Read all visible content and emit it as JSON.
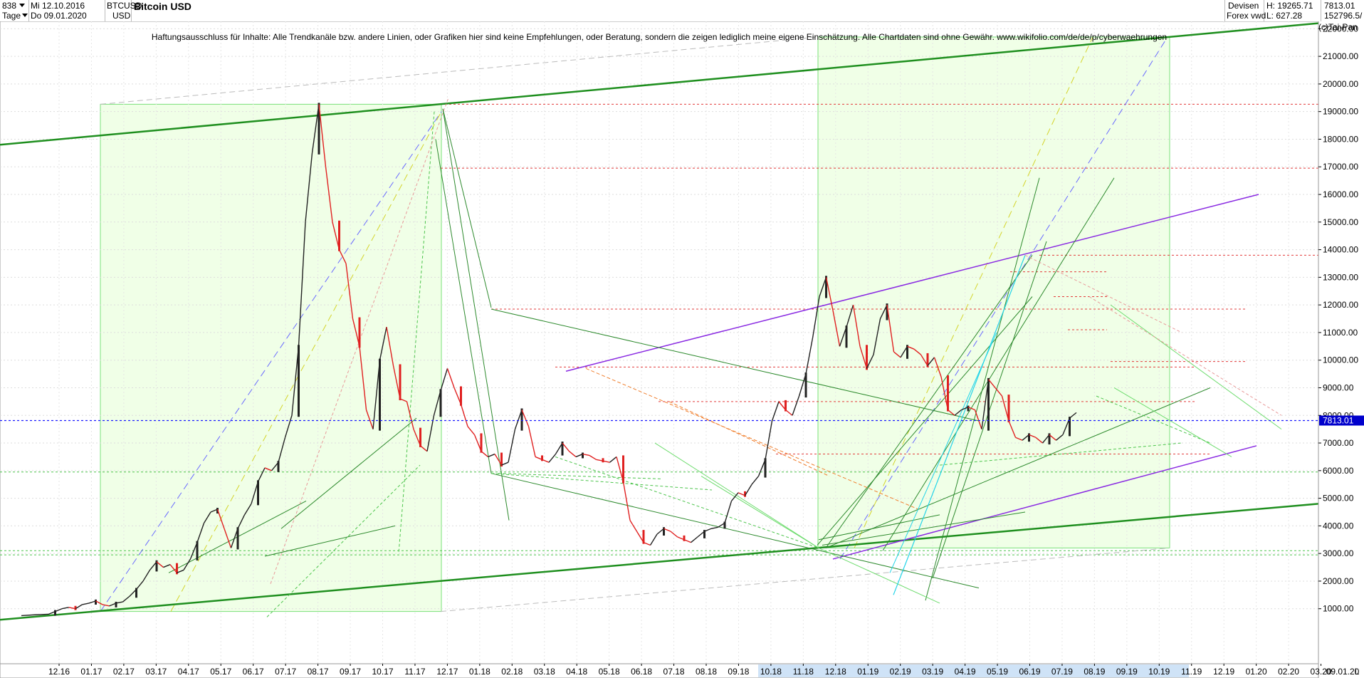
{
  "header": {
    "id_value": "838",
    "date_from": "Mi 12.10.2016",
    "period": "Tage",
    "date_to": "Do 09.01.2020",
    "symbol": "BTCUSD",
    "currency": "USD",
    "title": "Bitcoin USD",
    "market": "Devisen",
    "source": "Forex vwd",
    "high": "H: 19265.71",
    "low": "L: 627.28",
    "last": "7813.01",
    "volume": "152796.5/"
  },
  "disclaimer": "Haftungsausschluss für Inhalte: Alle Trendkanäle bzw. andere Linien, oder Grafiken hier sind keine Empfehlungen, oder Beratung, sondern die zeigen lediglich meine eigene Einschätzung. Alle Chartdaten sind ohne Gewähr.  www.wikifolio.com/de/de/p/cyberwaehrungen",
  "copyright": "(c)Tai-Pan",
  "corner_label": "L",
  "chart_data": {
    "type": "line",
    "title": "Bitcoin USD",
    "y_ticks": [
      1000,
      2000,
      3000,
      4000,
      5000,
      6000,
      7000,
      8000,
      9000,
      10000,
      11000,
      12000,
      13000,
      14000,
      15000,
      16000,
      17000,
      18000,
      19000,
      20000,
      21000,
      22000
    ],
    "y_tick_labels": [
      "1000.00",
      "2000.00",
      "3000.00",
      "4000.00",
      "5000.00",
      "6000.00",
      "7000.00",
      "8000.00",
      "9000.00",
      "10000.00",
      "11000.00",
      "12000.00",
      "13000.00",
      "14000.00",
      "15000.00",
      "16000.00",
      "17000.00",
      "18000.00",
      "19000.00",
      "20000.00",
      "21000.00",
      "22000.00"
    ],
    "ylim": [
      0,
      23000
    ],
    "x_labels": [
      "12.16",
      "01.17",
      "02.17",
      "03.17",
      "04.17",
      "05.17",
      "06.17",
      "07.17",
      "08.17",
      "09.17",
      "10.17",
      "11.17",
      "12.17",
      "01.18",
      "02.18",
      "03.18",
      "04.18",
      "05.18",
      "06.18",
      "07.18",
      "08.18",
      "09.18",
      "10.18",
      "11.18",
      "12.18",
      "01.19",
      "02.19",
      "03.19",
      "04.19",
      "05.19",
      "06.19",
      "07.19",
      "08.19",
      "09.19",
      "10.19",
      "11.19",
      "12.19",
      "01.20",
      "02.20",
      "03.20"
    ],
    "x_end_label": "09.01.20",
    "last_value_label": "7813.01",
    "last_value": 7813.01,
    "series": [
      {
        "points": [
          [
            0,
            750
          ],
          [
            2,
            780
          ],
          [
            4,
            800
          ],
          [
            5,
            900
          ],
          [
            6,
            1000
          ],
          [
            7,
            1050
          ],
          [
            8,
            1000
          ],
          [
            9,
            1150
          ],
          [
            10,
            1200
          ],
          [
            11,
            1280
          ],
          [
            12,
            1150
          ],
          [
            13,
            1100
          ],
          [
            14,
            1200
          ],
          [
            15,
            1250
          ],
          [
            16,
            1450
          ],
          [
            17,
            1700
          ],
          [
            18,
            2000
          ],
          [
            19,
            2400
          ],
          [
            20,
            2700
          ],
          [
            21,
            2500
          ],
          [
            22,
            2600
          ],
          [
            23,
            2300
          ],
          [
            24,
            2400
          ],
          [
            25,
            2800
          ],
          [
            26,
            3400
          ],
          [
            27,
            4100
          ],
          [
            28,
            4500
          ],
          [
            29,
            4600
          ],
          [
            30,
            3900
          ],
          [
            31,
            3200
          ],
          [
            32,
            3900
          ],
          [
            33,
            4400
          ],
          [
            34,
            4800
          ],
          [
            35,
            5600
          ],
          [
            36,
            6100
          ],
          [
            37,
            6000
          ],
          [
            38,
            6300
          ],
          [
            39,
            7200
          ],
          [
            40,
            8000
          ],
          [
            41,
            10500
          ],
          [
            42,
            15000
          ],
          [
            43,
            17500
          ],
          [
            44,
            19265
          ],
          [
            45,
            17000
          ],
          [
            46,
            15000
          ],
          [
            47,
            14000
          ],
          [
            48,
            13500
          ],
          [
            49,
            11500
          ],
          [
            50,
            10500
          ],
          [
            51,
            8200
          ],
          [
            52,
            7500
          ],
          [
            53,
            10000
          ],
          [
            54,
            11200
          ],
          [
            55,
            9800
          ],
          [
            56,
            8600
          ],
          [
            57,
            8500
          ],
          [
            58,
            7500
          ],
          [
            59,
            6900
          ],
          [
            60,
            6700
          ],
          [
            61,
            8000
          ],
          [
            62,
            8900
          ],
          [
            63,
            9700
          ],
          [
            64,
            9000
          ],
          [
            65,
            8400
          ],
          [
            66,
            7600
          ],
          [
            67,
            7300
          ],
          [
            68,
            6700
          ],
          [
            69,
            6500
          ],
          [
            70,
            6600
          ],
          [
            71,
            6200
          ],
          [
            72,
            6300
          ],
          [
            73,
            7500
          ],
          [
            74,
            8200
          ],
          [
            75,
            7600
          ],
          [
            76,
            6500
          ],
          [
            77,
            6400
          ],
          [
            78,
            6300
          ],
          [
            79,
            6600
          ],
          [
            80,
            7000
          ],
          [
            81,
            6700
          ],
          [
            82,
            6500
          ],
          [
            83,
            6600
          ],
          [
            84,
            6550
          ],
          [
            85,
            6400
          ],
          [
            86,
            6350
          ],
          [
            87,
            6300
          ],
          [
            88,
            6500
          ],
          [
            89,
            5600
          ],
          [
            90,
            4200
          ],
          [
            91,
            3800
          ],
          [
            92,
            3400
          ],
          [
            93,
            3300
          ],
          [
            94,
            3700
          ],
          [
            95,
            3900
          ],
          [
            96,
            3800
          ],
          [
            97,
            3600
          ],
          [
            98,
            3500
          ],
          [
            99,
            3400
          ],
          [
            100,
            3600
          ],
          [
            101,
            3800
          ],
          [
            102,
            3900
          ],
          [
            103,
            3950
          ],
          [
            104,
            4100
          ],
          [
            105,
            4900
          ],
          [
            106,
            5200
          ],
          [
            107,
            5100
          ],
          [
            108,
            5500
          ],
          [
            109,
            5800
          ],
          [
            110,
            6400
          ],
          [
            111,
            7800
          ],
          [
            112,
            8500
          ],
          [
            113,
            8200
          ],
          [
            114,
            8000
          ],
          [
            115,
            8700
          ],
          [
            116,
            9500
          ],
          [
            117,
            10800
          ],
          [
            118,
            12300
          ],
          [
            119,
            13000
          ],
          [
            120,
            11800
          ],
          [
            121,
            10500
          ],
          [
            122,
            11200
          ],
          [
            123,
            12000
          ],
          [
            124,
            10500
          ],
          [
            125,
            9700
          ],
          [
            126,
            10200
          ],
          [
            127,
            11500
          ],
          [
            128,
            12000
          ],
          [
            129,
            10300
          ],
          [
            130,
            10100
          ],
          [
            131,
            10500
          ],
          [
            132,
            10400
          ],
          [
            133,
            10200
          ],
          [
            134,
            9800
          ],
          [
            135,
            10100
          ],
          [
            136,
            9400
          ],
          [
            137,
            8200
          ],
          [
            138,
            8000
          ],
          [
            139,
            8200
          ],
          [
            140,
            8300
          ],
          [
            141,
            8200
          ],
          [
            142,
            7500
          ],
          [
            143,
            9300
          ],
          [
            144,
            9000
          ],
          [
            145,
            8700
          ],
          [
            146,
            7800
          ],
          [
            147,
            7200
          ],
          [
            148,
            7100
          ],
          [
            149,
            7300
          ],
          [
            150,
            7200
          ],
          [
            151,
            7000
          ],
          [
            152,
            7300
          ],
          [
            153,
            7100
          ],
          [
            154,
            7300
          ],
          [
            155,
            7900
          ],
          [
            156,
            8100
          ]
        ]
      }
    ],
    "legend": "none",
    "grid": true,
    "y_axis_position": "right"
  }
}
